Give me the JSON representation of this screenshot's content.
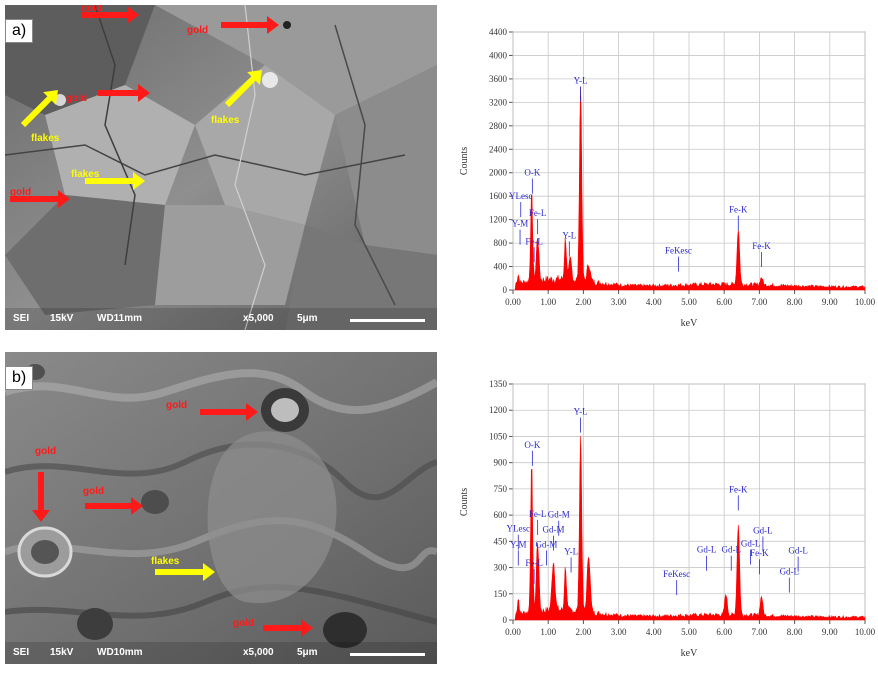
{
  "panels": [
    {
      "label": "a)",
      "sem": {
        "footer": [
          "SEI",
          "15kV",
          "WD11mm",
          "x5,000",
          "5μm"
        ],
        "arrows": [
          {
            "text": "gold",
            "color": "#ff1a1a",
            "dir": "right"
          },
          {
            "text": "gold",
            "color": "#ff1a1a",
            "dir": "right"
          },
          {
            "text": "gold",
            "color": "#ff1a1a",
            "dir": "right"
          },
          {
            "text": "gold",
            "color": "#ff1a1a",
            "dir": "right"
          },
          {
            "text": "flakes",
            "color": "#ffff00",
            "dir": "up-right"
          },
          {
            "text": "flakes",
            "color": "#ffff00",
            "dir": "up-right"
          },
          {
            "text": "flakes",
            "color": "#ffff00",
            "dir": "right"
          }
        ]
      }
    },
    {
      "label": "b)",
      "sem": {
        "footer": [
          "SEI",
          "15kV",
          "WD10mm",
          "x5,000",
          "5μm"
        ],
        "arrows": [
          {
            "text": "gold",
            "color": "#ff1a1a",
            "dir": "right"
          },
          {
            "text": "gold",
            "color": "#ff1a1a",
            "dir": "down"
          },
          {
            "text": "gold",
            "color": "#ff1a1a",
            "dir": "right"
          },
          {
            "text": "gold",
            "color": "#ff1a1a",
            "dir": "right"
          },
          {
            "text": "flakes",
            "color": "#ffff00",
            "dir": "right"
          }
        ]
      }
    }
  ],
  "chart_data": [
    {
      "type": "area",
      "xlabel": "keV",
      "ylabel": "Counts",
      "xlim": [
        0,
        10
      ],
      "ylim": [
        0,
        4400
      ],
      "x_ticks": [
        "0.00",
        "1.00",
        "2.00",
        "3.00",
        "4.00",
        "5.00",
        "6.00",
        "7.00",
        "8.00",
        "9.00",
        "10.00"
      ],
      "y_ticks": [
        "0",
        "400",
        "800",
        "1200",
        "1600",
        "2000",
        "2400",
        "2800",
        "3200",
        "3600",
        "4000",
        "4400"
      ],
      "grid": true,
      "color": "#ff0000",
      "peaks": [
        {
          "x": 0.15,
          "y": 150,
          "w": 0.03
        },
        {
          "x": 0.53,
          "y": 1500,
          "w": 0.04
        },
        {
          "x": 0.7,
          "y": 750,
          "w": 0.05
        },
        {
          "x": 1.49,
          "y": 700,
          "w": 0.04
        },
        {
          "x": 1.63,
          "y": 350,
          "w": 0.05
        },
        {
          "x": 1.92,
          "y": 3300,
          "w": 0.045
        },
        {
          "x": 2.15,
          "y": 300,
          "w": 0.06
        },
        {
          "x": 6.4,
          "y": 950,
          "w": 0.05
        },
        {
          "x": 7.06,
          "y": 130,
          "w": 0.05
        }
      ],
      "annotations": [
        {
          "text": "Y-L",
          "x": 1.92,
          "y": 3520
        },
        {
          "text": "O-K",
          "x": 0.55,
          "y": 1950
        },
        {
          "text": "YLesc",
          "x": 0.22,
          "y": 1550
        },
        {
          "text": "Fe-L",
          "x": 0.7,
          "y": 1260
        },
        {
          "text": "Y-M",
          "x": 0.2,
          "y": 1080
        },
        {
          "text": "Fe-L",
          "x": 0.6,
          "y": 780
        },
        {
          "text": "Y-L",
          "x": 1.6,
          "y": 880
        },
        {
          "text": "FeKesc",
          "x": 4.7,
          "y": 620
        },
        {
          "text": "Fe-K",
          "x": 6.4,
          "y": 1320
        },
        {
          "text": "Fe-K",
          "x": 7.06,
          "y": 700
        }
      ]
    },
    {
      "type": "area",
      "xlabel": "keV",
      "ylabel": "Counts",
      "xlim": [
        0,
        10
      ],
      "ylim": [
        0,
        1350
      ],
      "x_ticks": [
        "0.00",
        "1.00",
        "2.00",
        "3.00",
        "4.00",
        "5.00",
        "6.00",
        "7.00",
        "8.00",
        "9.00",
        "10.00"
      ],
      "y_ticks": [
        "0",
        "150",
        "300",
        "450",
        "600",
        "750",
        "900",
        "1050",
        "1200",
        "1350"
      ],
      "grid": true,
      "color": "#ff0000",
      "peaks": [
        {
          "x": 0.15,
          "y": 90,
          "w": 0.03
        },
        {
          "x": 0.53,
          "y": 850,
          "w": 0.04
        },
        {
          "x": 0.7,
          "y": 400,
          "w": 0.05
        },
        {
          "x": 1.15,
          "y": 280,
          "w": 0.06
        },
        {
          "x": 1.49,
          "y": 250,
          "w": 0.04
        },
        {
          "x": 1.92,
          "y": 1000,
          "w": 0.045
        },
        {
          "x": 2.15,
          "y": 330,
          "w": 0.06
        },
        {
          "x": 6.05,
          "y": 120,
          "w": 0.05
        },
        {
          "x": 6.4,
          "y": 520,
          "w": 0.05
        },
        {
          "x": 7.06,
          "y": 110,
          "w": 0.05
        }
      ],
      "annotations": [
        {
          "text": "Y-L",
          "x": 1.92,
          "y": 1175
        },
        {
          "text": "O-K",
          "x": 0.55,
          "y": 985
        },
        {
          "text": "Fe-L",
          "x": 0.7,
          "y": 590
        },
        {
          "text": "Gd-M",
          "x": 1.3,
          "y": 585
        },
        {
          "text": "Gd-M",
          "x": 1.15,
          "y": 500
        },
        {
          "text": "YLesc",
          "x": 0.15,
          "y": 505
        },
        {
          "text": "Y-M",
          "x": 0.15,
          "y": 415
        },
        {
          "text": "Gd-M",
          "x": 0.95,
          "y": 415
        },
        {
          "text": "Y-L",
          "x": 1.65,
          "y": 375
        },
        {
          "text": "Fe-L",
          "x": 0.6,
          "y": 310
        },
        {
          "text": "FeKesc",
          "x": 4.65,
          "y": 245
        },
        {
          "text": "Gd-L",
          "x": 5.5,
          "y": 385
        },
        {
          "text": "Gd-L",
          "x": 6.2,
          "y": 385
        },
        {
          "text": "Fe-K",
          "x": 6.4,
          "y": 730
        },
        {
          "text": "Gd-L",
          "x": 7.1,
          "y": 495
        },
        {
          "text": "Gd-L",
          "x": 6.75,
          "y": 420
        },
        {
          "text": "Fe-K",
          "x": 7.0,
          "y": 365
        },
        {
          "text": "Gd-L",
          "x": 8.1,
          "y": 380
        },
        {
          "text": "Gd-L",
          "x": 7.85,
          "y": 260
        }
      ]
    }
  ]
}
